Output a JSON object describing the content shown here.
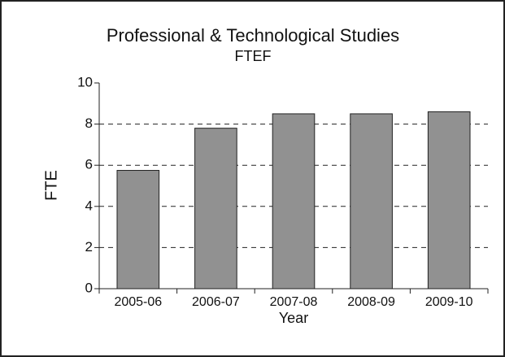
{
  "chart_data": {
    "type": "bar",
    "title": "Professional & Technological Studies",
    "subtitle": "FTEF",
    "x_label": "Year",
    "y_label": "FTE",
    "categories": [
      "2005-06",
      "2006-07",
      "2007-08",
      "2008-09",
      "2009-10"
    ],
    "values": [
      5.75,
      7.8,
      8.5,
      8.5,
      8.6
    ],
    "color": "#919191",
    "ylim": [
      0,
      10
    ],
    "yticks": [
      0,
      2,
      4,
      6,
      8,
      10
    ],
    "grid": true
  }
}
